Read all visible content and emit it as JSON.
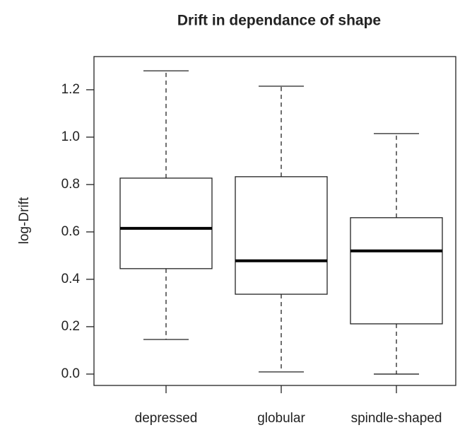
{
  "chart_data": {
    "type": "box",
    "title": "Drift in dependance of shape",
    "y_label": "log-Drift",
    "categories": [
      "depressed",
      "globular",
      "spindle-shaped"
    ],
    "min": [
      0.146,
      0.009,
      0.0
    ],
    "q1": [
      0.445,
      0.337,
      0.212
    ],
    "median": [
      0.615,
      0.478,
      0.52
    ],
    "q3": [
      0.827,
      0.833,
      0.66
    ],
    "max": [
      1.28,
      1.215,
      1.015
    ],
    "color": "#ffffff",
    "ylim": [
      -0.048,
      1.34
    ],
    "yticks": [
      {
        "value": 0,
        "label": "0.0"
      },
      0.2,
      0.4,
      0.6,
      0.8,
      {
        "value": 1,
        "label": "1.0"
      },
      1.2
    ]
  }
}
